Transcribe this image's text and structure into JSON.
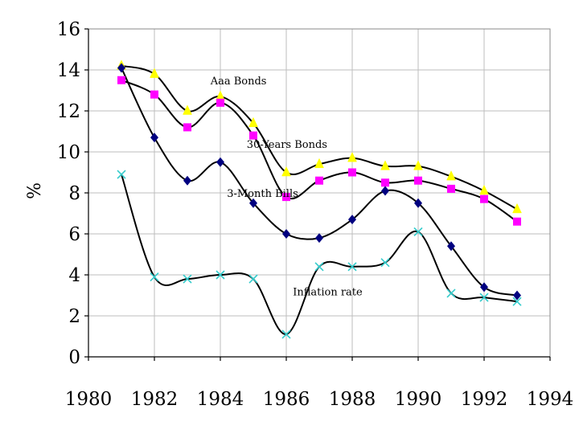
{
  "chart_data": {
    "type": "line",
    "title": "",
    "xlabel": "",
    "ylabel": "%",
    "xlim": [
      1980,
      1994
    ],
    "ylim": [
      0,
      16
    ],
    "xticks": [
      1980,
      1982,
      1984,
      1986,
      1988,
      1990,
      1992,
      1994
    ],
    "yticks": [
      0,
      2,
      4,
      6,
      8,
      10,
      12,
      14,
      16
    ],
    "grid": true,
    "legend": "none",
    "x": [
      1981,
      1982,
      1983,
      1984,
      1985,
      1986,
      1987,
      1988,
      1989,
      1990,
      1991,
      1992,
      1993
    ],
    "series": [
      {
        "name": "Aaa Bonds",
        "marker": "triangle",
        "color": "#ffff00",
        "values": [
          14.2,
          13.8,
          12.0,
          12.7,
          11.4,
          9.0,
          9.4,
          9.7,
          9.3,
          9.3,
          8.8,
          8.1,
          7.2
        ]
      },
      {
        "name": "30-Years Bonds",
        "marker": "square",
        "color": "#ff00ff",
        "values": [
          13.5,
          12.8,
          11.2,
          12.4,
          10.8,
          7.8,
          8.6,
          9.0,
          8.5,
          8.6,
          8.2,
          7.7,
          6.6
        ]
      },
      {
        "name": "3-Month Bills",
        "marker": "diamond",
        "color": "#000080",
        "values": [
          14.1,
          10.7,
          8.6,
          9.5,
          7.5,
          6.0,
          5.8,
          6.7,
          8.1,
          7.5,
          5.4,
          3.4,
          3.0
        ]
      },
      {
        "name": "Inflation rate",
        "marker": "x",
        "color": "#33cccc",
        "values": [
          8.9,
          3.9,
          3.8,
          4.0,
          3.8,
          1.1,
          4.4,
          4.4,
          4.6,
          6.1,
          3.1,
          2.9,
          2.7
        ]
      }
    ],
    "annotations": [
      {
        "text": "Aaa Bonds",
        "x": 1983.7,
        "y": 13.3
      },
      {
        "text": "30-Years Bonds",
        "x": 1984.8,
        "y": 10.2
      },
      {
        "text": "3-Month Bills",
        "x": 1984.2,
        "y": 7.8
      },
      {
        "text": "Inflation rate",
        "x": 1986.2,
        "y": 3.0
      }
    ]
  }
}
